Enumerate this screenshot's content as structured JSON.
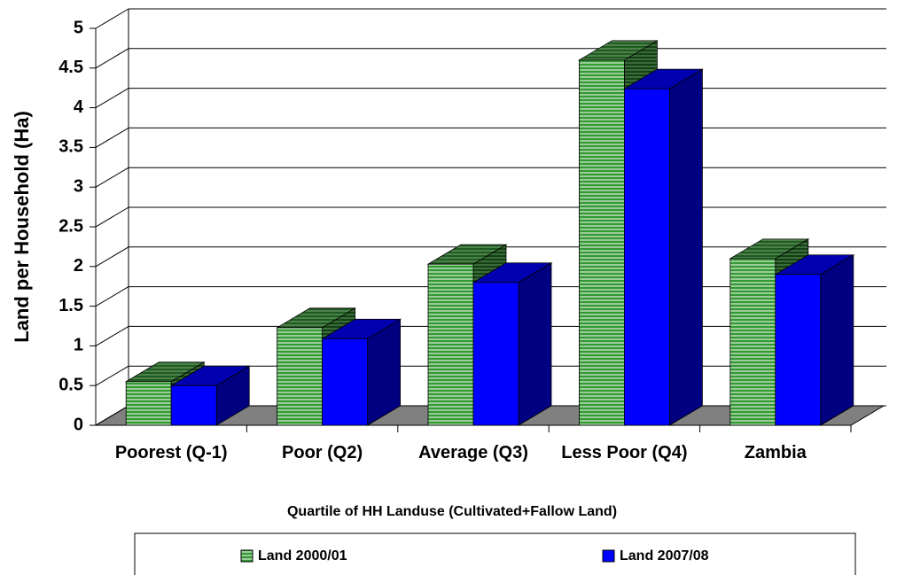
{
  "chart_data": {
    "type": "bar3d",
    "y_label": "Land per Household (Ha)",
    "x_label": "Quartile of HH Landuse (Cultivated+Fallow Land)",
    "categories": [
      "Poorest (Q-1)",
      "Poor (Q2)",
      "Average (Q3)",
      "Less Poor (Q4)",
      "Zambia"
    ],
    "series": [
      {
        "name": "Land 2000/01",
        "color": "#339933",
        "values": [
          0.55,
          1.23,
          2.03,
          4.6,
          2.1
        ]
      },
      {
        "name": "Land 2007/08",
        "color": "#0000ff",
        "values": [
          0.5,
          1.09,
          1.8,
          4.24,
          1.9
        ]
      }
    ],
    "ylim": [
      0,
      5
    ],
    "yticks": [
      0,
      0.5,
      1,
      1.5,
      2,
      2.5,
      3,
      3.5,
      4,
      4.5,
      5
    ],
    "grid": true
  }
}
